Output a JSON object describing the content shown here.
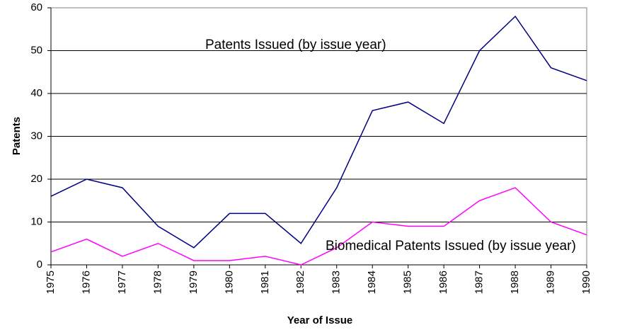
{
  "chart_data": {
    "type": "line",
    "x_label": "Year of Issue",
    "y_label": "Patents",
    "categories": [
      "1975",
      "1976",
      "1977",
      "1978",
      "1979",
      "1980",
      "1981",
      "1982",
      "1983",
      "1984",
      "1985",
      "1986",
      "1987",
      "1988",
      "1989",
      "1990"
    ],
    "series": [
      {
        "name": "Patents Issued (by issue year)",
        "color": "#000080",
        "values": [
          16,
          20,
          18,
          9,
          4,
          12,
          12,
          5,
          18,
          36,
          38,
          33,
          50,
          58,
          46,
          43
        ]
      },
      {
        "name": "Biomedical Patents Issued (by issue year)",
        "color": "#ff00ff",
        "values": [
          3,
          6,
          2,
          5,
          1,
          1,
          2,
          0,
          4,
          10,
          9,
          9,
          15,
          18,
          10,
          7
        ]
      }
    ],
    "ylim": [
      0,
      60
    ],
    "yticks": [
      0,
      10,
      20,
      30,
      40,
      50,
      60
    ],
    "grid": true
  }
}
